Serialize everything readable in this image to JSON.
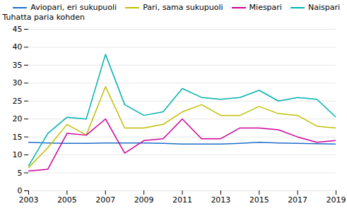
{
  "chart_data": {
    "type": "line",
    "ylabel": "Tuhatta paria kohden",
    "x": [
      2003,
      2004,
      2005,
      2006,
      2007,
      2008,
      2009,
      2010,
      2011,
      2012,
      2013,
      2014,
      2015,
      2016,
      2017,
      2018,
      2019
    ],
    "series": [
      {
        "name": "Aviopari, eri sukupuoli",
        "color": "#1F6EC8",
        "values": [
          13.5,
          13.3,
          13.2,
          13.2,
          13.3,
          13.3,
          13.3,
          13.2,
          13.0,
          13.0,
          13.0,
          13.2,
          13.5,
          13.3,
          13.2,
          13.1,
          13.0
        ]
      },
      {
        "name": "Pari, sama sukupuoli",
        "color": "#BFBF00",
        "values": [
          6.5,
          12.0,
          18.5,
          15.5,
          29.0,
          17.5,
          17.5,
          18.5,
          22.0,
          24.0,
          21.0,
          21.0,
          23.5,
          21.5,
          21.0,
          18.0,
          17.5
        ]
      },
      {
        "name": "Miespari",
        "color": "#CC0099",
        "values": [
          5.5,
          6.0,
          16.0,
          15.5,
          20.0,
          10.5,
          14.0,
          14.5,
          20.0,
          14.5,
          14.5,
          17.5,
          17.5,
          17.0,
          15.0,
          13.5,
          14.0
        ]
      },
      {
        "name": "Naispari",
        "color": "#00B0B0",
        "values": [
          7.0,
          16.0,
          20.5,
          20.0,
          38.0,
          24.0,
          21.0,
          22.0,
          28.5,
          26.0,
          25.5,
          26.0,
          28.0,
          25.0,
          26.0,
          25.5,
          20.5
        ]
      }
    ],
    "xlim": [
      2003,
      2019
    ],
    "xticks": [
      2003,
      2005,
      2007,
      2009,
      2011,
      2013,
      2015,
      2017,
      2019
    ],
    "ylim": [
      0,
      45
    ],
    "yticks": [
      0,
      5,
      10,
      15,
      20,
      25,
      30,
      35,
      40,
      45
    ],
    "grid": true,
    "legend": "upper right"
  }
}
